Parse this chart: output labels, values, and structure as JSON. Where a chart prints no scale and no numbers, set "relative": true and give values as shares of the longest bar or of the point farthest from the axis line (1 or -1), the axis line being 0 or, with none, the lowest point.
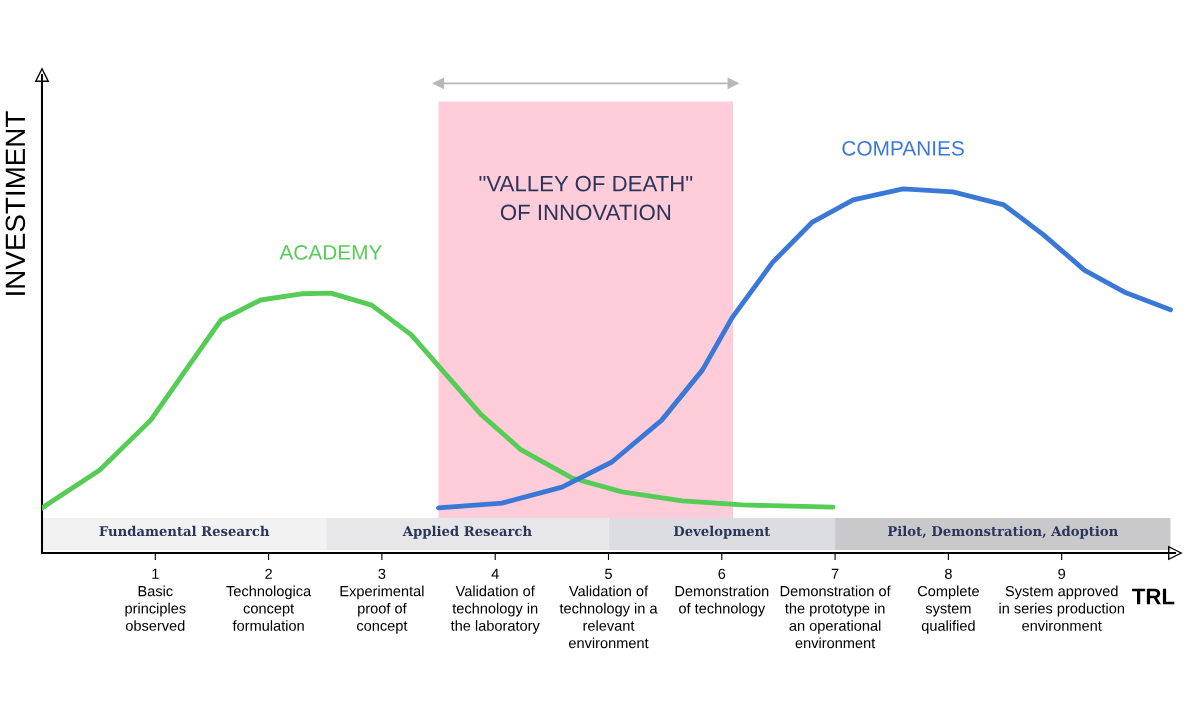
{
  "chart_data": {
    "type": "line",
    "relative": true,
    "xlabel": "TRL",
    "ylabel": "INVESTIMENT",
    "xlim": [
      0,
      10
    ],
    "xticks": [
      {
        "value": 1,
        "label": "1\nBasic\nprinciples\nobserved"
      },
      {
        "value": 2,
        "label": "2\nTechnologica\nconcept\nformulation"
      },
      {
        "value": 3,
        "label": "3\nExperimental\nproof of\nconcept"
      },
      {
        "value": 4,
        "label": "4\nValidation of\ntechnology in\nthe laboratory"
      },
      {
        "value": 5,
        "label": "5\nValidation of\ntechnology in a\nrelevant\nenvironment"
      },
      {
        "value": 6,
        "label": "6\nDemonstration\nof technology"
      },
      {
        "value": 7,
        "label": "7\nDemonstration of\nthe prototype in\nan operational\nenvironment"
      },
      {
        "value": 8,
        "label": "8\nComplete\nsystem\nqualified"
      },
      {
        "value": 9,
        "label": "9\nSystem approved\nin series production\nenvironment"
      }
    ],
    "grid": false,
    "legend": false,
    "marker": "none",
    "line_style": "solid",
    "series": [
      {
        "name": "ACADEMY",
        "color": "#55cc55",
        "x": [
          0,
          0.51,
          0.96,
          1.27,
          1.58,
          1.93,
          2.29,
          2.55,
          2.91,
          3.26,
          3.53,
          3.88,
          4.23,
          4.68,
          5.12,
          5.65,
          6.18,
          6.98
        ],
        "values": [
          0.124,
          0.228,
          0.365,
          0.503,
          0.64,
          0.695,
          0.712,
          0.714,
          0.681,
          0.599,
          0.503,
          0.379,
          0.283,
          0.206,
          0.168,
          0.143,
          0.132,
          0.126
        ]
      },
      {
        "name": "COMPANIES",
        "color": "#3a78d8",
        "x": [
          3.5,
          4.06,
          4.59,
          5.03,
          5.47,
          5.83,
          6.09,
          6.45,
          6.8,
          7.16,
          7.6,
          8.04,
          8.49,
          8.84,
          9.2,
          9.55,
          9.96
        ],
        "values": [
          0.124,
          0.137,
          0.181,
          0.25,
          0.365,
          0.503,
          0.646,
          0.799,
          0.909,
          0.97,
          1.0,
          0.992,
          0.956,
          0.874,
          0.777,
          0.717,
          0.668
        ]
      }
    ],
    "bands": [
      {
        "axis": "x",
        "from": 3.5,
        "to": 6.1,
        "label": "\"VALLEY OF DEATH\"\nOF INNOVATION",
        "color": "#ffccd9"
      },
      {
        "axis": "x",
        "from": 0,
        "to": 2.51,
        "label": "Fundamental Research",
        "color": "#f2f2f2"
      },
      {
        "axis": "x",
        "from": 2.51,
        "to": 5.0,
        "label": "Applied Research",
        "color": "#e7e7e9"
      },
      {
        "axis": "x",
        "from": 5.0,
        "to": 7.0,
        "label": "Development",
        "color": "#dcdde0"
      },
      {
        "axis": "x",
        "from": 7.0,
        "to": 9.96,
        "label": "Pilot, Demonstration, Adoption",
        "color": "#c9c9cb"
      }
    ]
  }
}
